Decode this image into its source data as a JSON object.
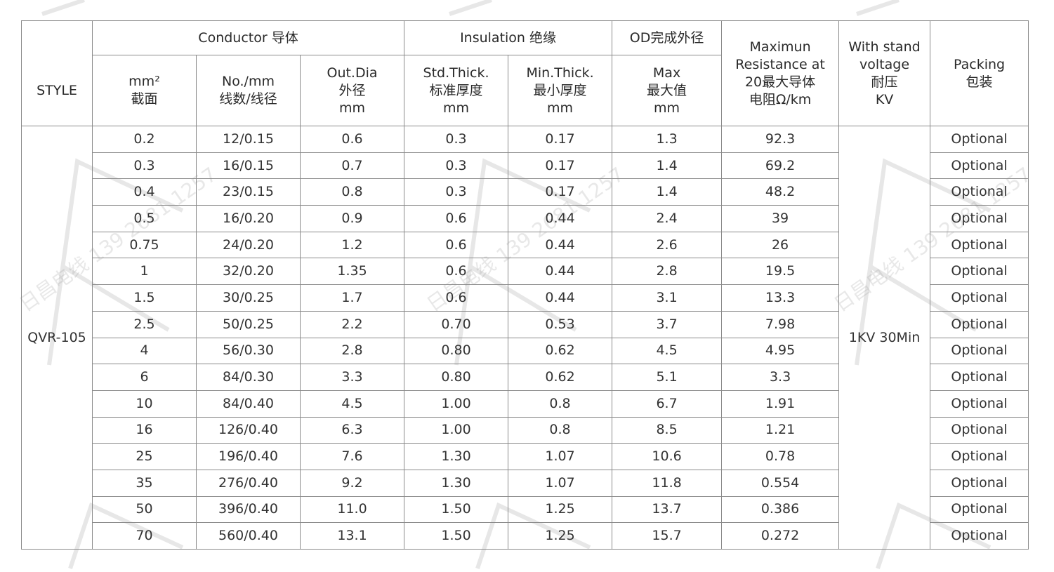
{
  "watermark": "日昌电线 139 2681 1257",
  "header": {
    "style": "STYLE",
    "conductor": "Conductor 导体",
    "insulation": "Insulation 绝缘",
    "od": "OD完成外径",
    "resistance": [
      "Maximun",
      "Resistance at",
      "20最大导体",
      "电阻Ω/km"
    ],
    "withstand": [
      "With stand",
      "voltage",
      "耐压",
      "KV"
    ],
    "packing": [
      "Packing",
      "包装"
    ],
    "mm2": [
      "mm²",
      "截面"
    ],
    "no_mm": [
      "No./mm",
      "线数/线径"
    ],
    "out_dia": [
      "Out.Dia",
      "外径",
      "mm"
    ],
    "std_thick": [
      "Std.Thick.",
      "标准厚度",
      "mm"
    ],
    "min_thick": [
      "Min.Thick.",
      "最小厚度",
      "mm"
    ],
    "max": [
      "Max",
      "最大值",
      "mm"
    ]
  },
  "style_value": "QVR-105",
  "withstand_value": "1KV 30Min",
  "rows": [
    [
      "0.2",
      "12/0.15",
      "0.6",
      "0.3",
      "0.17",
      "1.3",
      "92.3",
      "Optional"
    ],
    [
      "0.3",
      "16/0.15",
      "0.7",
      "0.3",
      "0.17",
      "1.4",
      "69.2",
      "Optional"
    ],
    [
      "0.4",
      "23/0.15",
      "0.8",
      "0.3",
      "0.17",
      "1.4",
      "48.2",
      "Optional"
    ],
    [
      "0.5",
      "16/0.20",
      "0.9",
      "0.6",
      "0.44",
      "2.4",
      "39",
      "Optional"
    ],
    [
      "0.75",
      "24/0.20",
      "1.2",
      "0.6",
      "0.44",
      "2.6",
      "26",
      "Optional"
    ],
    [
      "1",
      "32/0.20",
      "1.35",
      "0.6",
      "0.44",
      "2.8",
      "19.5",
      "Optional"
    ],
    [
      "1.5",
      "30/0.25",
      "1.7",
      "0.6",
      "0.44",
      "3.1",
      "13.3",
      "Optional"
    ],
    [
      "2.5",
      "50/0.25",
      "2.2",
      "0.70",
      "0.53",
      "3.7",
      "7.98",
      "Optional"
    ],
    [
      "4",
      "56/0.30",
      "2.8",
      "0.80",
      "0.62",
      "4.5",
      "4.95",
      "Optional"
    ],
    [
      "6",
      "84/0.30",
      "3.3",
      "0.80",
      "0.62",
      "5.1",
      "3.3",
      "Optional"
    ],
    [
      "10",
      "84/0.40",
      "4.5",
      "1.00",
      "0.8",
      "6.7",
      "1.91",
      "Optional"
    ],
    [
      "16",
      "126/0.40",
      "6.3",
      "1.00",
      "0.8",
      "8.5",
      "1.21",
      "Optional"
    ],
    [
      "25",
      "196/0.40",
      "7.6",
      "1.30",
      "1.07",
      "10.6",
      "0.78",
      "Optional"
    ],
    [
      "35",
      "276/0.40",
      "9.2",
      "1.30",
      "1.07",
      "11.8",
      "0.554",
      "Optional"
    ],
    [
      "50",
      "396/0.40",
      "11.0",
      "1.50",
      "1.25",
      "13.7",
      "0.386",
      "Optional"
    ],
    [
      "70",
      "560/0.40",
      "13.1",
      "1.50",
      "1.25",
      "15.7",
      "0.272",
      "Optional"
    ]
  ]
}
